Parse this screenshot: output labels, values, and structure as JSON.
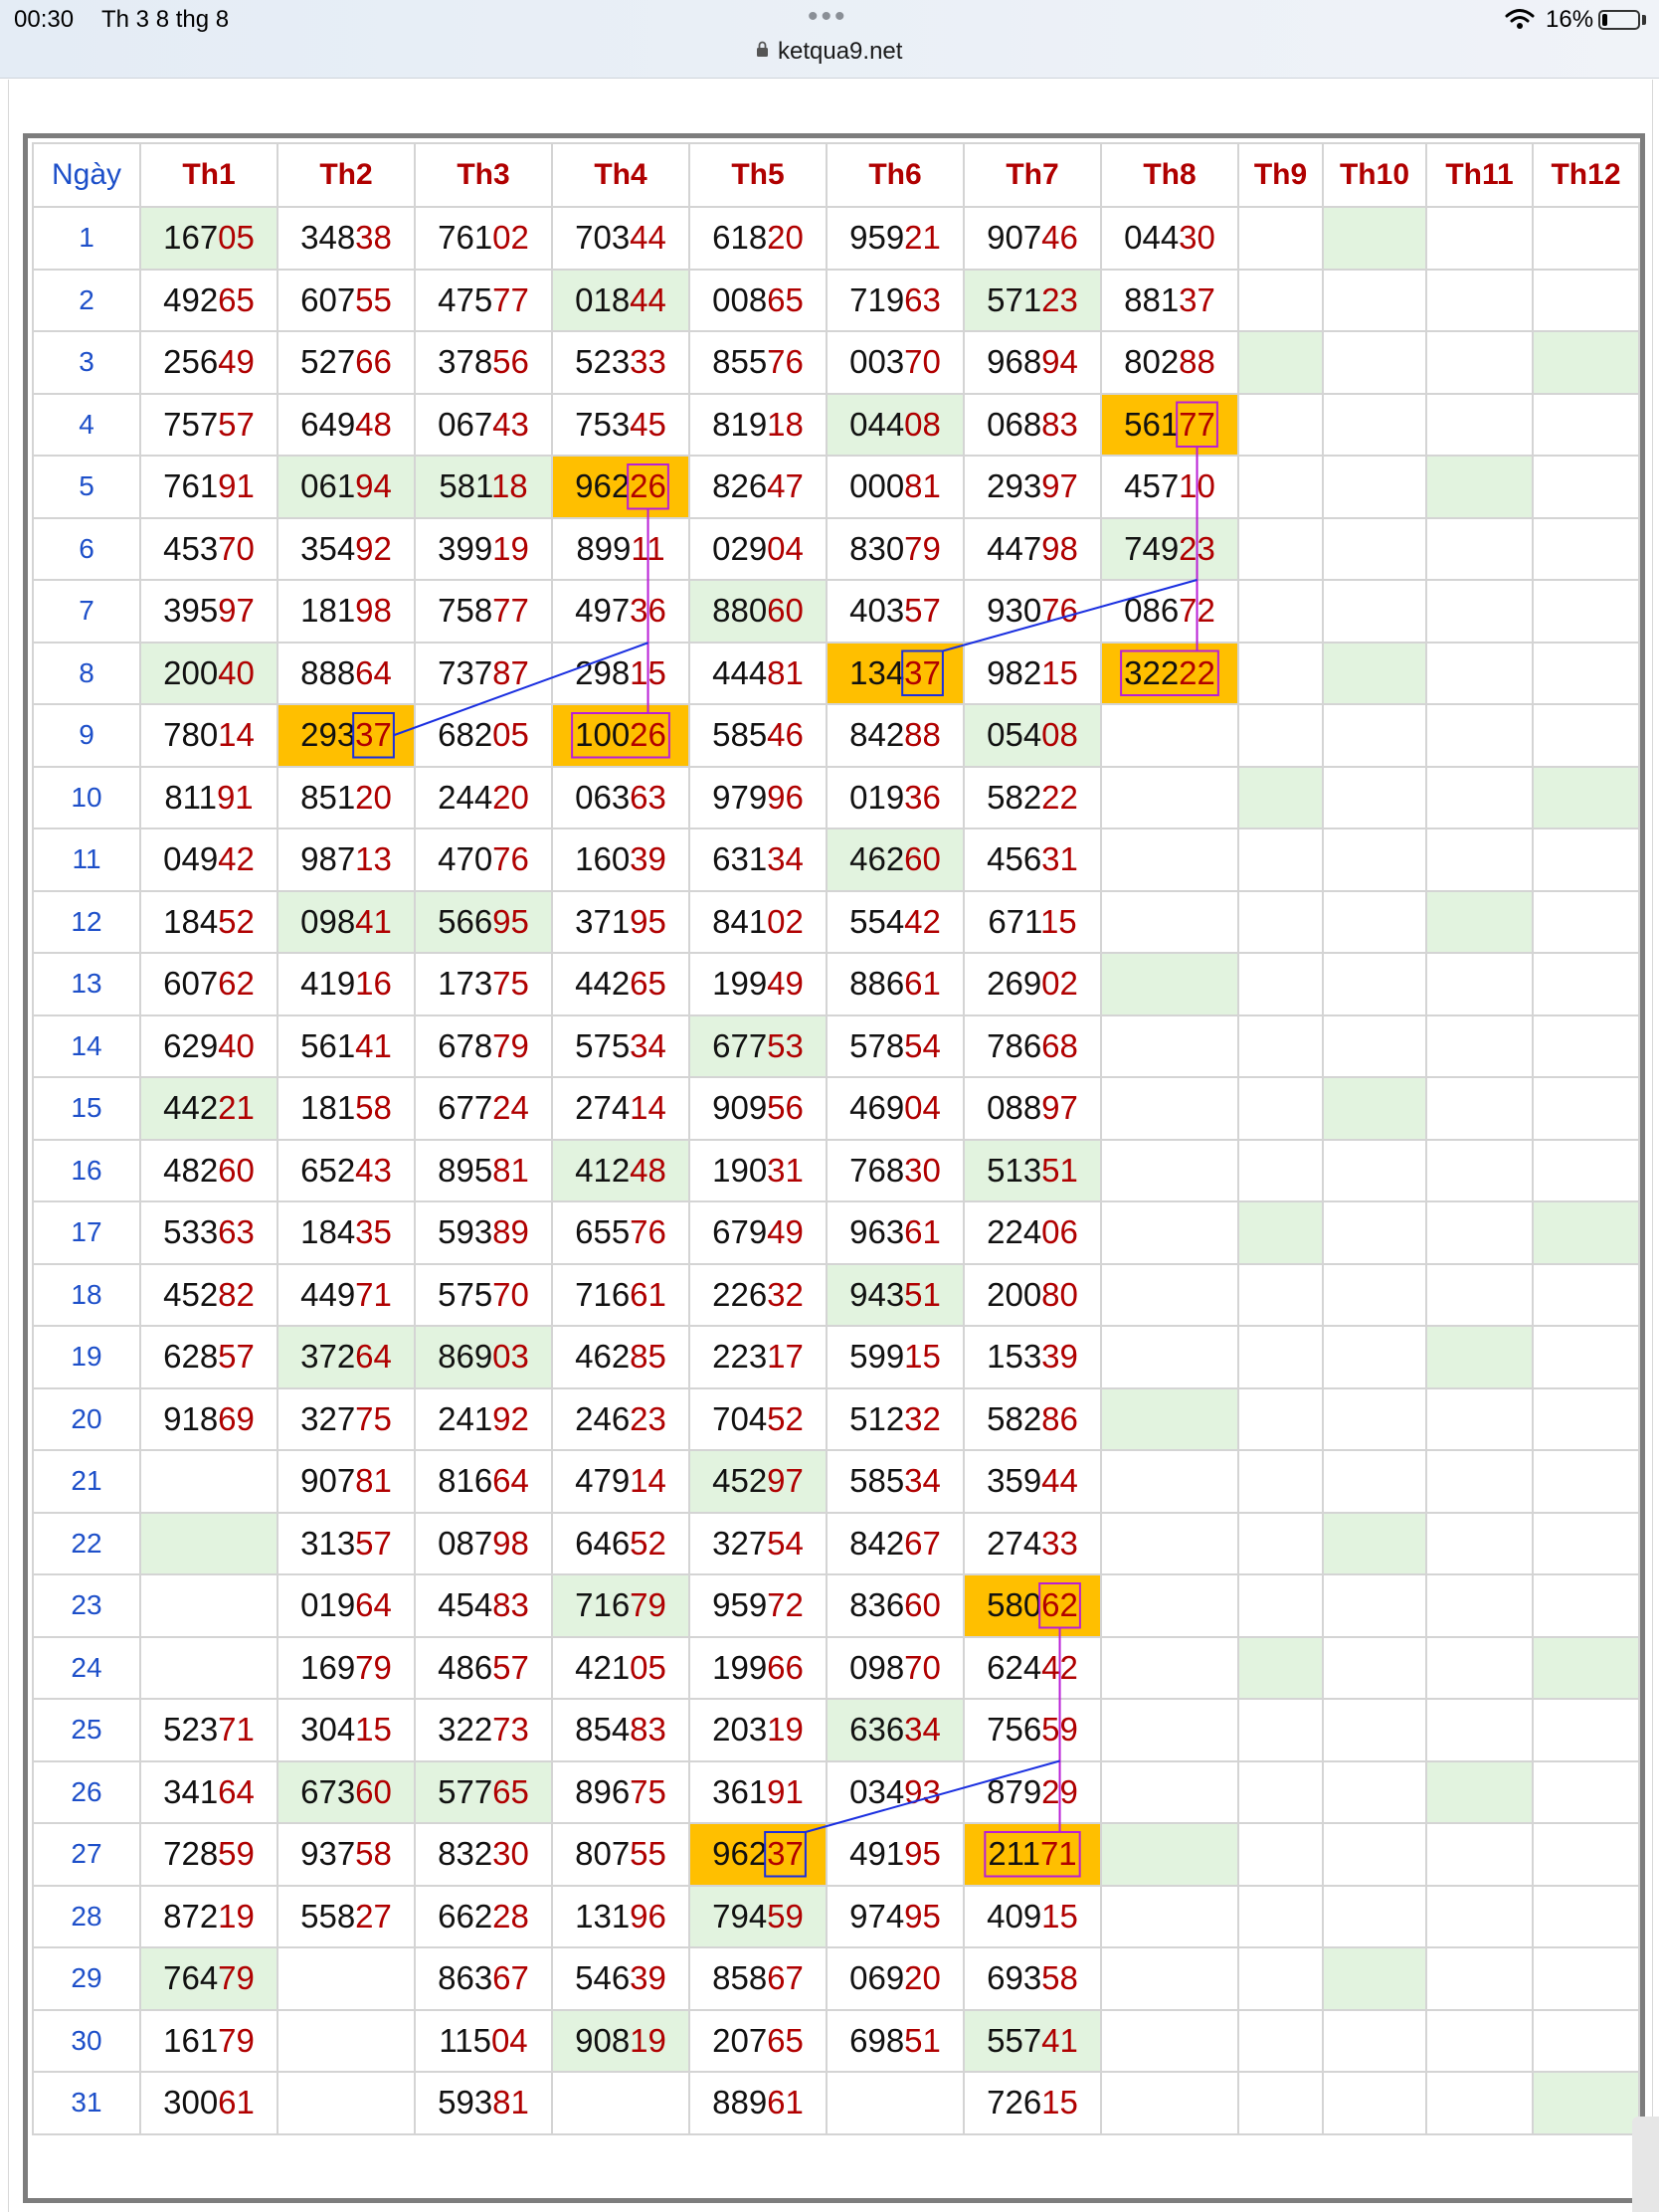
{
  "status_bar": {
    "time": "00:30",
    "date": "Th 3 8 thg 8",
    "battery": "16%",
    "battery_level": 0.16,
    "url": "ketqua9.net"
  },
  "table": {
    "headers": [
      "Ngày",
      "Th1",
      "Th2",
      "Th3",
      "Th4",
      "Th5",
      "Th6",
      "Th7",
      "Th8",
      "Th9",
      "Th10",
      "Th11",
      "Th12"
    ],
    "rows": [
      [
        "1",
        "16705",
        "34838",
        "76102",
        "70344",
        "61820",
        "95921",
        "90746",
        "04430",
        "",
        "",
        "",
        ""
      ],
      [
        "2",
        "49265",
        "60755",
        "47577",
        "01844",
        "00865",
        "71963",
        "57123",
        "88137",
        "",
        "",
        "",
        ""
      ],
      [
        "3",
        "25649",
        "52766",
        "37856",
        "52333",
        "85576",
        "00370",
        "96894",
        "80288",
        "",
        "",
        "",
        ""
      ],
      [
        "4",
        "75757",
        "64948",
        "06743",
        "75345",
        "81918",
        "04408",
        "06883",
        "56177",
        "",
        "",
        "",
        ""
      ],
      [
        "5",
        "76191",
        "06194",
        "58118",
        "96226",
        "82647",
        "00081",
        "29397",
        "45710",
        "",
        "",
        "",
        ""
      ],
      [
        "6",
        "45370",
        "35492",
        "39919",
        "89911",
        "02904",
        "83079",
        "44798",
        "74923",
        "",
        "",
        "",
        ""
      ],
      [
        "7",
        "39597",
        "18198",
        "75877",
        "49736",
        "88060",
        "40357",
        "93076",
        "08672",
        "",
        "",
        "",
        ""
      ],
      [
        "8",
        "20040",
        "88864",
        "73787",
        "29815",
        "44481",
        "13437",
        "98215",
        "32222",
        "",
        "",
        "",
        ""
      ],
      [
        "9",
        "78014",
        "29337",
        "68205",
        "10026",
        "58546",
        "84288",
        "05408",
        "",
        "",
        "",
        "",
        ""
      ],
      [
        "10",
        "81191",
        "85120",
        "24420",
        "06363",
        "97996",
        "01936",
        "58222",
        "",
        "",
        "",
        "",
        ""
      ],
      [
        "11",
        "04942",
        "98713",
        "47076",
        "16039",
        "63134",
        "46260",
        "45631",
        "",
        "",
        "",
        "",
        ""
      ],
      [
        "12",
        "18452",
        "09841",
        "56695",
        "37195",
        "84102",
        "55442",
        "67115",
        "",
        "",
        "",
        "",
        ""
      ],
      [
        "13",
        "60762",
        "41916",
        "17375",
        "44265",
        "19949",
        "88661",
        "26902",
        "",
        "",
        "",
        "",
        ""
      ],
      [
        "14",
        "62940",
        "56141",
        "67879",
        "57534",
        "67753",
        "57854",
        "78668",
        "",
        "",
        "",
        "",
        ""
      ],
      [
        "15",
        "44221",
        "18158",
        "67724",
        "27414",
        "90956",
        "46904",
        "08897",
        "",
        "",
        "",
        "",
        ""
      ],
      [
        "16",
        "48260",
        "65243",
        "89581",
        "41248",
        "19031",
        "76830",
        "51351",
        "",
        "",
        "",
        "",
        ""
      ],
      [
        "17",
        "53363",
        "18435",
        "59389",
        "65576",
        "67949",
        "96361",
        "22406",
        "",
        "",
        "",
        "",
        ""
      ],
      [
        "18",
        "45282",
        "44971",
        "57570",
        "71661",
        "22632",
        "94351",
        "20080",
        "",
        "",
        "",
        "",
        ""
      ],
      [
        "19",
        "62857",
        "37264",
        "86903",
        "46285",
        "22317",
        "59915",
        "15339",
        "",
        "",
        "",
        "",
        ""
      ],
      [
        "20",
        "91869",
        "32775",
        "24192",
        "24623",
        "70452",
        "51232",
        "58286",
        "",
        "",
        "",
        "",
        ""
      ],
      [
        "21",
        "",
        "90781",
        "81664",
        "47914",
        "45297",
        "58534",
        "35944",
        "",
        "",
        "",
        "",
        ""
      ],
      [
        "22",
        "",
        "31357",
        "08798",
        "64652",
        "32754",
        "84267",
        "27433",
        "",
        "",
        "",
        "",
        ""
      ],
      [
        "23",
        "",
        "01964",
        "45483",
        "71679",
        "95972",
        "83660",
        "58062",
        "",
        "",
        "",
        "",
        ""
      ],
      [
        "24",
        "",
        "16979",
        "48657",
        "42105",
        "19966",
        "09870",
        "62442",
        "",
        "",
        "",
        "",
        ""
      ],
      [
        "25",
        "52371",
        "30415",
        "32273",
        "85483",
        "20319",
        "63634",
        "75659",
        "",
        "",
        "",
        "",
        ""
      ],
      [
        "26",
        "34164",
        "67360",
        "57765",
        "89675",
        "36191",
        "03493",
        "87929",
        "",
        "",
        "",
        "",
        ""
      ],
      [
        "27",
        "72859",
        "93758",
        "83230",
        "80755",
        "96237",
        "49195",
        "21171",
        "",
        "",
        "",
        "",
        ""
      ],
      [
        "28",
        "87219",
        "55827",
        "66228",
        "13196",
        "79459",
        "97495",
        "40915",
        "",
        "",
        "",
        "",
        ""
      ],
      [
        "29",
        "76479",
        "",
        "86367",
        "54639",
        "85867",
        "06920",
        "69358",
        "",
        "",
        "",
        "",
        ""
      ],
      [
        "30",
        "16179",
        "",
        "11504",
        "90819",
        "20765",
        "69851",
        "55741",
        "",
        "",
        "",
        "",
        ""
      ],
      [
        "31",
        "30061",
        "",
        "59381",
        "",
        "88961",
        "",
        "72615",
        "",
        "",
        "",
        "",
        ""
      ]
    ],
    "green_cells": [
      [
        0,
        0
      ],
      [
        0,
        9
      ],
      [
        1,
        3
      ],
      [
        1,
        6
      ],
      [
        2,
        8
      ],
      [
        2,
        11
      ],
      [
        3,
        5
      ],
      [
        4,
        1
      ],
      [
        4,
        2
      ],
      [
        4,
        10
      ],
      [
        5,
        7
      ],
      [
        6,
        4
      ],
      [
        7,
        0
      ],
      [
        7,
        9
      ],
      [
        8,
        6
      ],
      [
        9,
        8
      ],
      [
        9,
        11
      ],
      [
        10,
        5
      ],
      [
        11,
        1
      ],
      [
        11,
        2
      ],
      [
        11,
        10
      ],
      [
        12,
        7
      ],
      [
        13,
        4
      ],
      [
        14,
        0
      ],
      [
        14,
        9
      ],
      [
        15,
        3
      ],
      [
        15,
        6
      ],
      [
        16,
        8
      ],
      [
        16,
        11
      ],
      [
        17,
        5
      ],
      [
        18,
        1
      ],
      [
        18,
        2
      ],
      [
        18,
        10
      ],
      [
        19,
        7
      ],
      [
        20,
        4
      ],
      [
        21,
        0
      ],
      [
        21,
        9
      ],
      [
        22,
        3
      ],
      [
        23,
        8
      ],
      [
        23,
        11
      ],
      [
        24,
        5
      ],
      [
        25,
        1
      ],
      [
        25,
        2
      ],
      [
        25,
        10
      ],
      [
        26,
        7
      ],
      [
        27,
        4
      ],
      [
        28,
        0
      ],
      [
        28,
        9
      ],
      [
        29,
        3
      ],
      [
        29,
        6
      ],
      [
        30,
        11
      ]
    ],
    "orange_cells": [
      [
        3,
        7
      ],
      [
        4,
        3
      ],
      [
        7,
        5
      ],
      [
        7,
        7
      ],
      [
        8,
        1
      ],
      [
        8,
        3
      ],
      [
        22,
        6
      ],
      [
        26,
        4
      ],
      [
        26,
        6
      ]
    ]
  }
}
